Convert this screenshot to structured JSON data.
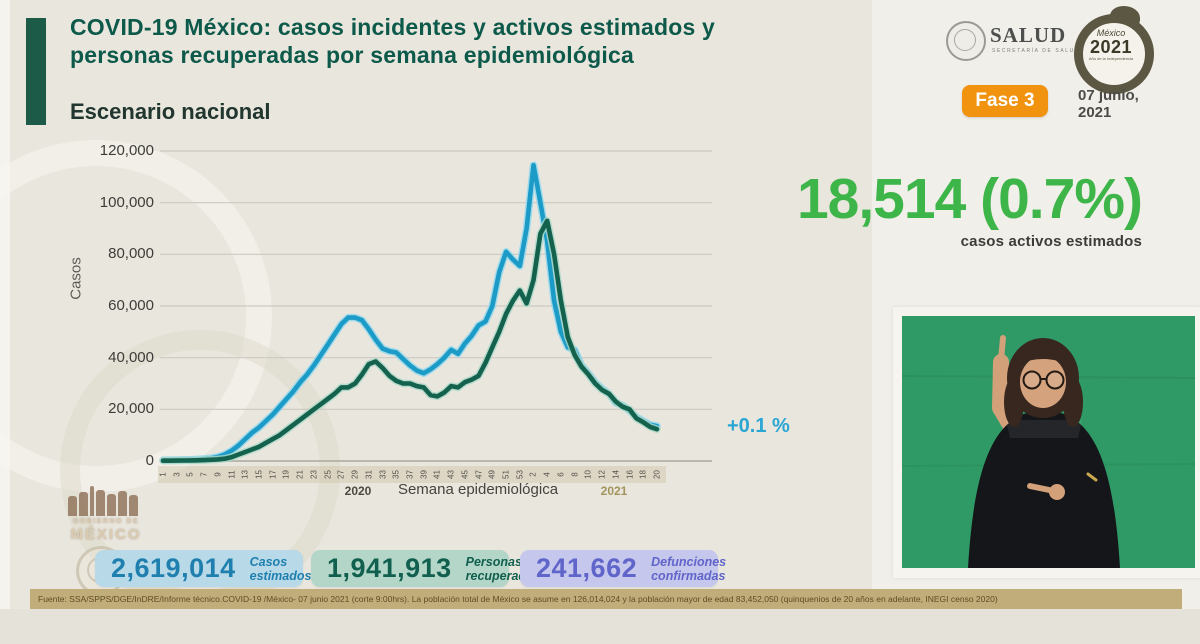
{
  "header": {
    "title_line1": "COVID-19 México: casos incidentes y activos estimados y",
    "title_line2": "personas recuperadas por semana epidemiológica",
    "section_title": "Escenario nacional",
    "salud_logo": {
      "text": "SALUD",
      "subtext": "SECRETARÍA DE SALUD"
    },
    "mexico2021_logo": {
      "name": "México",
      "year": "2021",
      "caption": "Año de la Independencia"
    },
    "fase_badge": "Fase 3",
    "date_line1": "07 junio,",
    "date_line2": "2021"
  },
  "headline": {
    "value": "18,514 (0.7%)",
    "label": "casos activos estimados",
    "color": "#3db549"
  },
  "chart_data": {
    "type": "line",
    "title": "Escenario nacional",
    "xlabel": "Semana epidemiológica",
    "ylabel": "Casos",
    "ylim": [
      0,
      120000
    ],
    "grid": true,
    "legend": "none",
    "y_ticks": [
      0,
      20000,
      40000,
      60000,
      80000,
      100000,
      120000
    ],
    "y_tick_labels": [
      "0",
      "20,000",
      "40,000",
      "60,000",
      "80,000",
      "100,000",
      "120,000"
    ],
    "x_year_groups": [
      {
        "label": "2020",
        "weeks": 53
      },
      {
        "label": "2021",
        "weeks": 20
      }
    ],
    "x_tick_labels": [
      "1",
      "3",
      "5",
      "7",
      "9",
      "11",
      "13",
      "15",
      "17",
      "19",
      "21",
      "23",
      "25",
      "27",
      "29",
      "31",
      "33",
      "35",
      "37",
      "39",
      "41",
      "43",
      "45",
      "47",
      "49",
      "51",
      "53",
      "2",
      "4",
      "6",
      "8",
      "10",
      "12",
      "14",
      "16",
      "18",
      "20"
    ],
    "series": [
      {
        "name": "Casos incidentes estimados",
        "color": "#1d9bc7",
        "halo": "#8ed7ee",
        "values": [
          300,
          350,
          400,
          450,
          500,
          600,
          800,
          1100,
          1600,
          2500,
          4000,
          6000,
          8500,
          11000,
          13000,
          15500,
          18000,
          21000,
          24000,
          27000,
          30500,
          33500,
          37000,
          41000,
          45000,
          49000,
          53000,
          55500,
          55500,
          54500,
          51000,
          47000,
          43500,
          42500,
          42000,
          39500,
          37000,
          35000,
          34000,
          35500,
          37500,
          40000,
          43000,
          41500,
          45500,
          48500,
          52500,
          54000,
          60000,
          73000,
          81000,
          78000,
          75500,
          90000,
          114500,
          100000,
          85000,
          62000,
          50000,
          44000,
          43000,
          37000,
          34000,
          30500,
          28000,
          26000,
          22500,
          21500,
          19500,
          17000,
          15500,
          14000,
          13500
        ]
      },
      {
        "name": "Personas recuperadas",
        "color": "#14614e",
        "halo": "#a9d8c7",
        "values": [
          100,
          120,
          150,
          180,
          220,
          280,
          350,
          450,
          600,
          900,
          1500,
          2500,
          3500,
          4500,
          5500,
          7000,
          8500,
          10000,
          12000,
          14000,
          16000,
          18000,
          20000,
          22000,
          24000,
          26000,
          28500,
          28500,
          30000,
          33500,
          37500,
          38500,
          36000,
          33000,
          31000,
          30000,
          30000,
          29000,
          28500,
          25500,
          25000,
          26500,
          29000,
          28500,
          30500,
          31500,
          33000,
          38000,
          44000,
          50000,
          57000,
          62000,
          66000,
          61000,
          70000,
          88000,
          93000,
          80000,
          62000,
          48000,
          41000,
          36500,
          33500,
          30000,
          27500,
          26000,
          23000,
          21000,
          20000,
          16500,
          15000,
          13200,
          12300
        ]
      }
    ],
    "end_annotation": "+0.1 %"
  },
  "stats_cards": [
    {
      "value": "2,619,014",
      "label": "Casos estimados",
      "bg": "#b8d9e8",
      "color": "#1f7fae"
    },
    {
      "value": "1,941,913",
      "label": "Personas recuperadas",
      "bg": "#b4d6c8",
      "color": "#11604f"
    },
    {
      "value": "241,662",
      "label": "Defunciones confirmadas",
      "bg": "#c6c7ed",
      "color": "#6065c9"
    }
  ],
  "watermark": {
    "line1": "GOBIERNO DE",
    "line2": "MÉXICO"
  },
  "footer": {
    "source": "Fuente: SSA/SPPS/DGE/InDRE/Informe técnico.COVID-19 /México- 07 junio 2021 (corte 9:00hrs). La población total de México se asume en 126,014,024 y la población mayor de edad 83,452,050 (quinquenios de 20 años en adelante, INEGI censo 2020)"
  }
}
